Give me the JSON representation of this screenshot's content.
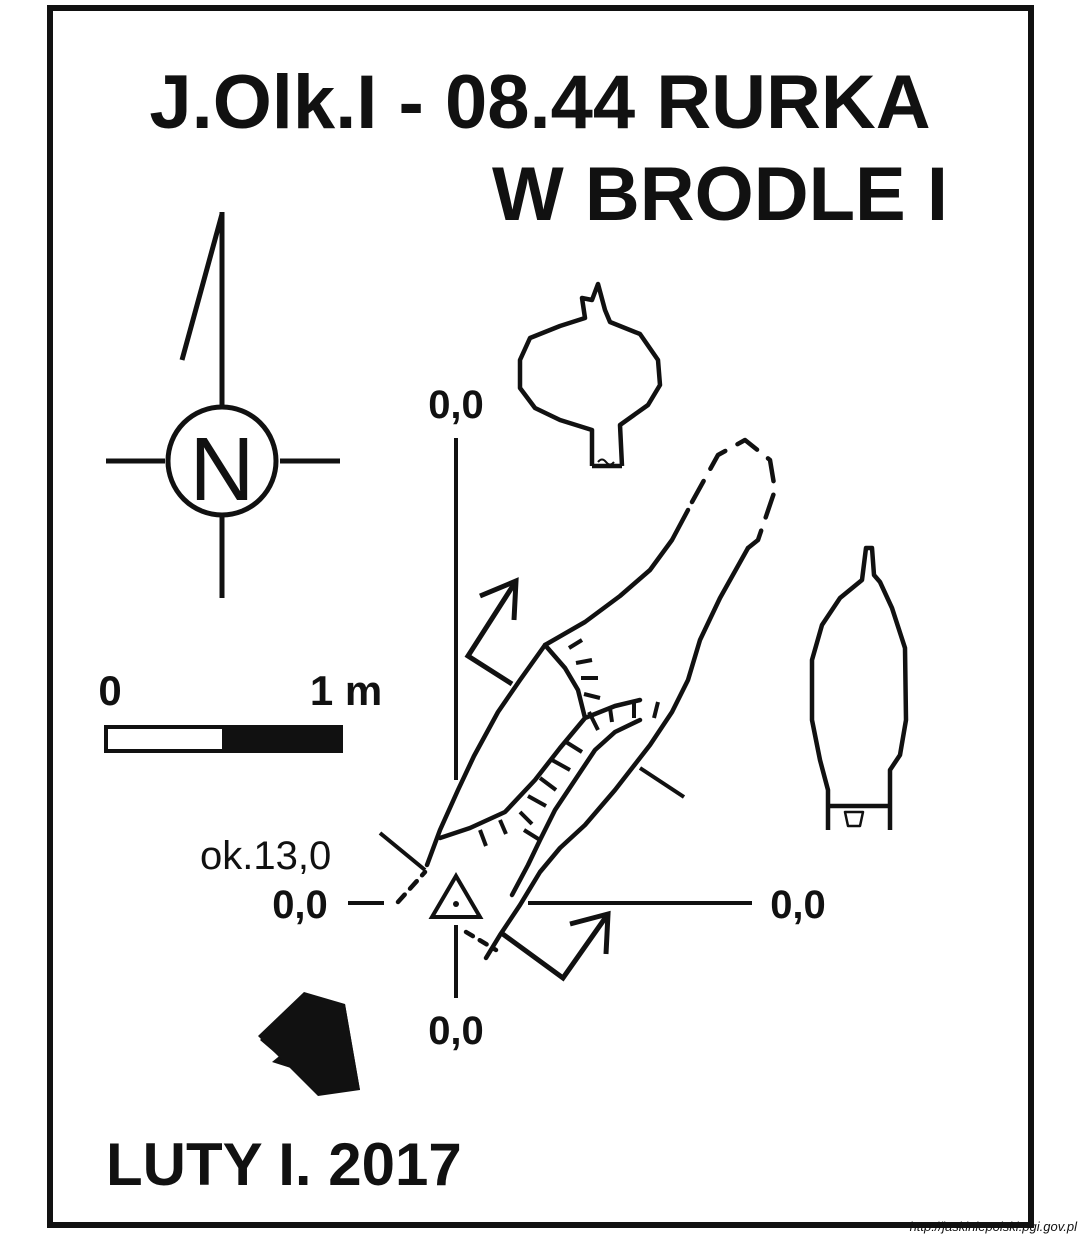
{
  "title": {
    "line1": "J.Olk.I - 08.44  RURKA",
    "line2": "W BRODLE I"
  },
  "north": {
    "letter": "N",
    "icon": "north-arrow-icon"
  },
  "scale": {
    "zero_label": "0",
    "one_label": "1 m",
    "length_m": 1
  },
  "depths": {
    "top": "0,0",
    "left": "0,0",
    "right": "0,0",
    "bottom": "0,0",
    "note": "ok.13,0"
  },
  "date": "LUTY I. 2017",
  "source_url": "http://jaskiniepolski.pgi.gov.pl",
  "colors": {
    "ink": "#111111",
    "background": "#ffffff"
  }
}
